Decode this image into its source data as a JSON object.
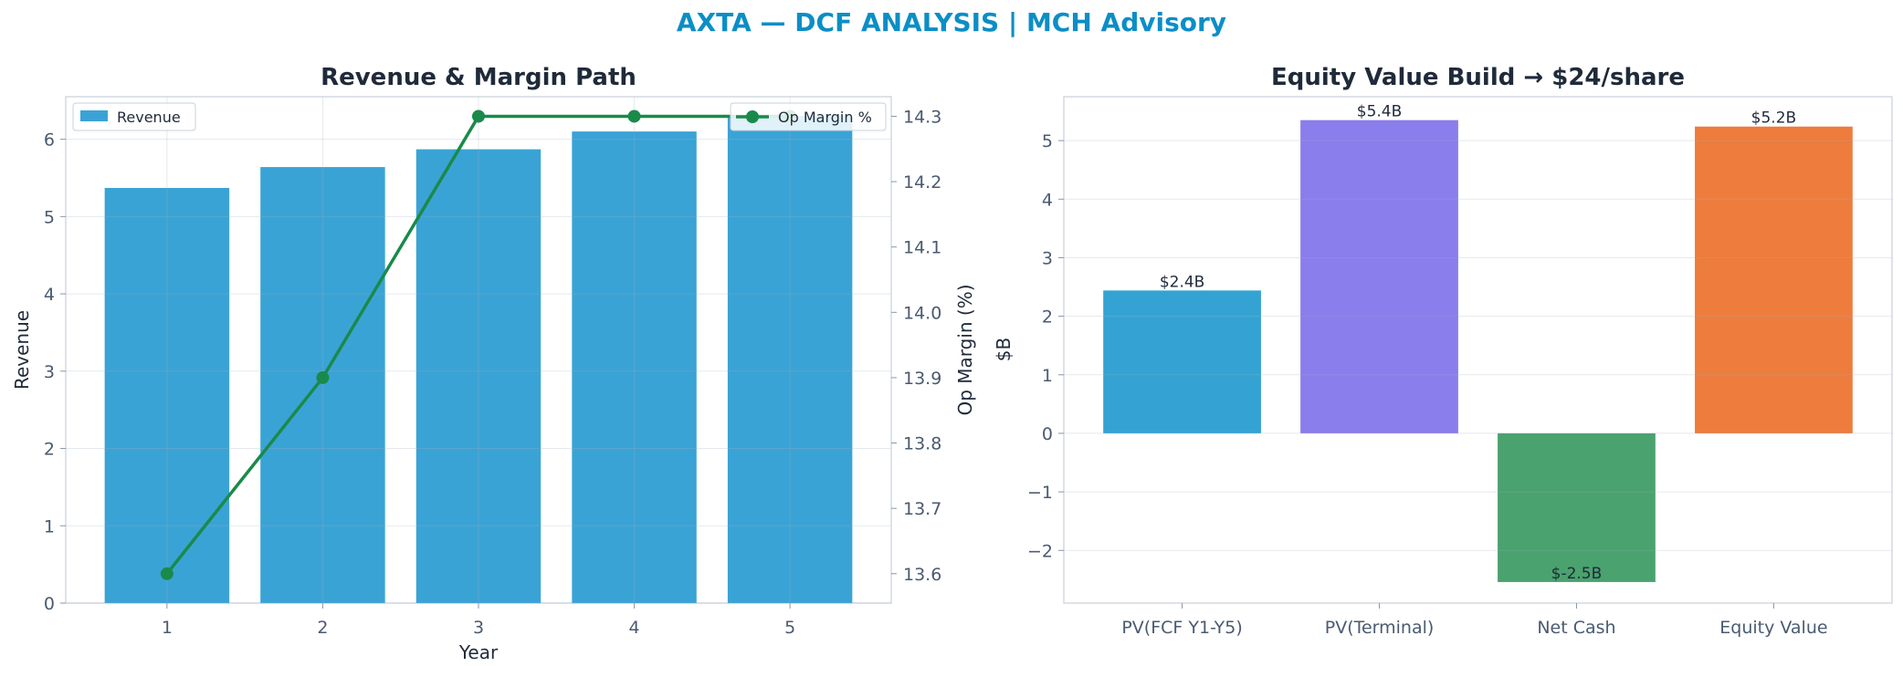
{
  "suptitle": "AXTA — DCF ANALYSIS | MCH Advisory",
  "colors": {
    "suptitle": "#0b8ec6",
    "revenue_bar": "#3aa3d5",
    "margin_line": "#1a8a4a",
    "pv_fcf": "#34a3d4",
    "pv_terminal": "#8a7dec",
    "net_cash": "#4aa26e",
    "equity_value": "#ee7c3d"
  },
  "chart_data": [
    {
      "type": "bar",
      "title": "Revenue & Margin Path",
      "xlabel": "Year",
      "ylabel": "Revenue",
      "ylabel_right": "Op Margin (%)",
      "categories": [
        "1",
        "2",
        "3",
        "4",
        "5"
      ],
      "series": [
        {
          "name": "Revenue",
          "type": "bar",
          "axis": "left",
          "values": [
            5.37,
            5.64,
            5.87,
            6.1,
            6.3
          ]
        },
        {
          "name": "Op Margin %",
          "type": "line",
          "axis": "right",
          "values": [
            13.6,
            13.9,
            14.3,
            14.3,
            14.3
          ]
        }
      ],
      "ylim": [
        0,
        6.55
      ],
      "yticks": [
        0,
        1,
        2,
        3,
        4,
        5,
        6
      ],
      "ylim_right": [
        13.555,
        14.33
      ],
      "yticks_right": [
        13.6,
        13.7,
        13.8,
        13.9,
        14.0,
        14.1,
        14.2,
        14.3
      ],
      "grid": true,
      "legend": [
        "upper-left",
        "upper-right"
      ]
    },
    {
      "type": "bar",
      "title": "Equity Value Build → $24/share",
      "xlabel": "",
      "ylabel": "$B",
      "categories": [
        "PV(FCF Y1-Y5)",
        "PV(Terminal)",
        "Net Cash",
        "Equity Value"
      ],
      "values": [
        2.44,
        5.35,
        -2.54,
        5.24
      ],
      "data_labels": [
        "$2.4B",
        "$5.4B",
        "$-2.5B",
        "$5.2B"
      ],
      "ylim": [
        -2.9,
        5.75
      ],
      "yticks": [
        -2,
        -1,
        0,
        1,
        2,
        3,
        4,
        5
      ],
      "grid": true
    }
  ]
}
